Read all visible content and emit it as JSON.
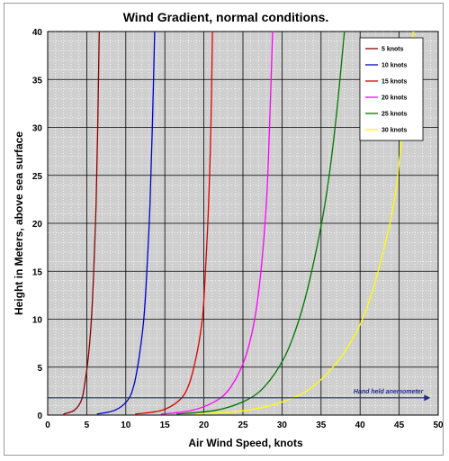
{
  "chart_data": {
    "type": "line",
    "title": "Wind Gradient, normal conditions.",
    "xlabel": "Air Wind Speed, knots",
    "ylabel": "Height in Meters, above sea surface",
    "xlim": [
      0,
      50
    ],
    "ylim": [
      0,
      40
    ],
    "xticks": [
      0,
      5,
      10,
      15,
      20,
      25,
      30,
      35,
      40,
      45,
      50
    ],
    "yticks": [
      0,
      5,
      10,
      15,
      20,
      25,
      30,
      35,
      40
    ],
    "grid": true,
    "legend_position": "top-right",
    "series": [
      {
        "name": "5 knots",
        "color": "#8b0000",
        "x": [
          2.0,
          3.4,
          4.3,
          4.7,
          5.2,
          5.6,
          5.9,
          6.2,
          6.4,
          6.6
        ],
        "y": [
          0.1,
          0.5,
          1.5,
          3.0,
          6.0,
          10.0,
          15.0,
          22.0,
          30.0,
          40.0
        ]
      },
      {
        "name": "10 knots",
        "color": "#0000cc",
        "x": [
          6.3,
          8.6,
          10.2,
          11.0,
          11.7,
          12.3,
          12.7,
          13.1,
          13.4,
          13.7
        ],
        "y": [
          0.1,
          0.5,
          1.5,
          3.0,
          6.0,
          10.0,
          15.0,
          22.0,
          30.0,
          40.0
        ]
      },
      {
        "name": "15 knots",
        "color": "#dd0000",
        "x": [
          11.2,
          14.6,
          16.8,
          18.0,
          19.0,
          19.8,
          20.2,
          20.6,
          20.9,
          21.1
        ],
        "y": [
          0.1,
          0.5,
          1.5,
          3.0,
          6.0,
          10.0,
          15.0,
          22.0,
          30.0,
          40.0
        ]
      },
      {
        "name": "20 knots",
        "color": "#ff00ff",
        "x": [
          14.5,
          18.5,
          21.6,
          23.5,
          25.3,
          26.5,
          27.3,
          28.0,
          28.4,
          28.8
        ],
        "y": [
          0.1,
          0.5,
          1.5,
          3.0,
          6.0,
          10.0,
          15.0,
          22.0,
          30.0,
          40.0
        ]
      },
      {
        "name": "25 knots",
        "color": "#007700",
        "x": [
          16.5,
          21.5,
          25.3,
          27.8,
          30.3,
          32.2,
          33.8,
          35.5,
          36.8,
          38.0
        ],
        "y": [
          0.1,
          0.5,
          1.5,
          3.0,
          6.0,
          10.0,
          15.0,
          22.0,
          30.0,
          40.0
        ]
      },
      {
        "name": "30 knots",
        "color": "#ffff00",
        "x": [
          19.0,
          25.5,
          30.5,
          34.0,
          37.5,
          40.3,
          42.3,
          44.3,
          45.5,
          46.8
        ],
        "y": [
          0.1,
          0.5,
          1.5,
          3.0,
          6.0,
          10.0,
          15.0,
          22.0,
          30.0,
          40.0
        ]
      }
    ],
    "annotations": [
      {
        "text": "Hand held anemometer",
        "y": 1.8,
        "x_start": 0,
        "x_end": 49,
        "color": "#1f2a8a"
      }
    ]
  }
}
